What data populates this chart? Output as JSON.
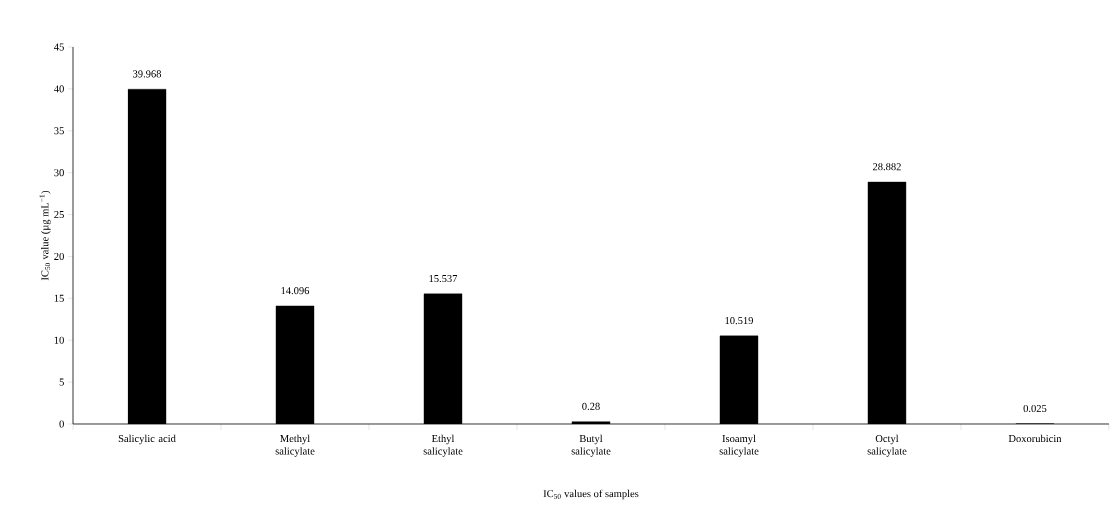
{
  "chart_data": {
    "type": "bar",
    "categories": [
      "Salicylic acid",
      "Methyl salicylate",
      "Ethyl salicylate",
      "Butyl salicylate",
      "Isoamyl salicylate",
      "Octyl salicylate",
      "Doxorubicin"
    ],
    "values": [
      39.968,
      14.096,
      15.537,
      0.28,
      10.519,
      28.882,
      0.025
    ],
    "color": "#000000",
    "xlabel": "IC$_{50}$ values of samples",
    "ylabel": "IC$_{50}$ value (µg mL$^{−1}$)",
    "ylim": [
      0,
      45
    ],
    "yticks": [
      0,
      5,
      10,
      15,
      20,
      25,
      30,
      35,
      40,
      45
    ],
    "data_labels": true,
    "grid": false
  }
}
